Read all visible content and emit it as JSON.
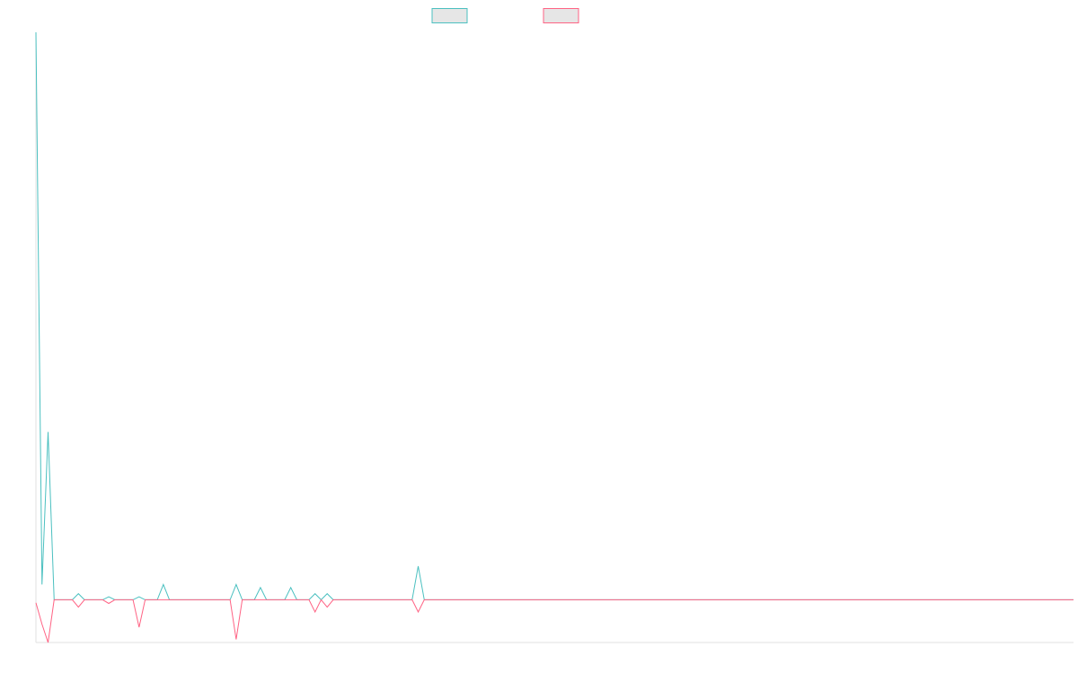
{
  "chart_data": {
    "type": "line",
    "title": "",
    "xlabel": "",
    "ylabel": "",
    "x": [
      0,
      1,
      2,
      3,
      4,
      5,
      6,
      7,
      8,
      9,
      10,
      11,
      12,
      13,
      14,
      15,
      16,
      17,
      18,
      19,
      20,
      21,
      22,
      23,
      24,
      25,
      26,
      27,
      28,
      29,
      30,
      31,
      32,
      33,
      34,
      35,
      36,
      37,
      38,
      39,
      40,
      41,
      42,
      43,
      44,
      45,
      46,
      47,
      48,
      49,
      50,
      51,
      52,
      53,
      54,
      55,
      56,
      57,
      58,
      59,
      60,
      61,
      62,
      63,
      64,
      65,
      66,
      67,
      68,
      69,
      70,
      71,
      72,
      73,
      74,
      75,
      76,
      77,
      78,
      79,
      80,
      81,
      82,
      83,
      84,
      85,
      86,
      87,
      88,
      89,
      90,
      91,
      92,
      93,
      94,
      95,
      96,
      97,
      98,
      99,
      100,
      101,
      102,
      103,
      104,
      105,
      106,
      107,
      108,
      109,
      110,
      111,
      112,
      113,
      114,
      115,
      116,
      117,
      118,
      119,
      120,
      121,
      122,
      123,
      124,
      125,
      126,
      127,
      128,
      129,
      130,
      131,
      132,
      133,
      134,
      135,
      136,
      137,
      138,
      139,
      140,
      141,
      142,
      143,
      144,
      145,
      146,
      147,
      148,
      149,
      150,
      151,
      152,
      153,
      154,
      155,
      156,
      157,
      158,
      159,
      160,
      161,
      162,
      163,
      164,
      165,
      166,
      167,
      168,
      169,
      170,
      171
    ],
    "ylim": [
      -7,
      93
    ],
    "grid": false,
    "legend_position": "top",
    "series": [
      {
        "color": "#4bc0c0",
        "values": [
          93,
          2.5,
          27.5,
          0,
          0,
          0,
          0,
          1,
          0,
          0,
          0,
          0,
          0.5,
          0,
          0,
          0,
          0,
          0.5,
          0,
          0,
          0,
          2.5,
          0,
          0,
          0,
          0,
          0,
          0,
          0,
          0,
          0,
          0,
          0,
          2.5,
          0,
          0,
          0,
          2,
          0,
          0,
          0,
          0,
          2,
          0,
          0,
          0,
          1,
          0,
          1,
          0,
          0,
          0,
          0,
          0,
          0,
          0,
          0,
          0,
          0,
          0,
          0,
          0,
          0,
          5.5,
          0,
          0,
          0,
          0,
          0,
          0,
          0,
          0,
          0,
          0,
          0,
          0,
          0,
          0,
          0,
          0,
          0,
          0,
          0,
          0,
          0,
          0,
          0,
          0,
          0,
          0,
          0,
          0,
          0,
          0,
          0,
          0,
          0,
          0,
          0,
          0,
          0,
          0,
          0,
          0,
          0,
          0,
          0,
          0,
          0,
          0,
          0,
          0,
          0,
          0,
          0,
          0,
          0,
          0,
          0,
          0,
          0,
          0,
          0,
          0,
          0,
          0,
          0,
          0,
          0,
          0,
          0,
          0,
          0,
          0,
          0,
          0,
          0,
          0,
          0,
          0,
          0,
          0,
          0,
          0,
          0,
          0,
          0,
          0,
          0,
          0,
          0,
          0,
          0,
          0,
          0,
          0,
          0,
          0,
          0,
          0,
          0,
          0,
          0,
          0,
          0,
          0,
          0,
          0,
          0,
          0,
          0,
          0
        ]
      },
      {
        "color": "#ff6384",
        "values": [
          -0.5,
          -4,
          -7,
          0,
          0,
          0,
          0,
          -1.2,
          0,
          0,
          0,
          0,
          -0.6,
          0,
          0,
          0,
          0,
          -4.5,
          0,
          0,
          0,
          0,
          0,
          0,
          0,
          0,
          0,
          0,
          0,
          0,
          0,
          0,
          0,
          -6.5,
          0,
          0,
          0,
          0,
          0,
          0,
          0,
          0,
          0,
          0,
          0,
          0,
          -2,
          0,
          -1.2,
          0,
          0,
          0,
          0,
          0,
          0,
          0,
          0,
          0,
          0,
          0,
          0,
          0,
          0,
          -2,
          0,
          0,
          0,
          0,
          0,
          0,
          0,
          0,
          0,
          0,
          0,
          0,
          0,
          0,
          0,
          0,
          0,
          0,
          0,
          0,
          0,
          0,
          0,
          0,
          0,
          0,
          0,
          0,
          0,
          0,
          0,
          0,
          0,
          0,
          0,
          0,
          0,
          0,
          0,
          0,
          0,
          0,
          0,
          0,
          0,
          0,
          0,
          0,
          0,
          0,
          0,
          0,
          0,
          0,
          0,
          0,
          0,
          0,
          0,
          0,
          0,
          0,
          0,
          0,
          0,
          0,
          0,
          0,
          0,
          0,
          0,
          0,
          0,
          0,
          0,
          0,
          0,
          0,
          0,
          0,
          0,
          0,
          0,
          0,
          0,
          0,
          0,
          0,
          0,
          0,
          0,
          0,
          0,
          0,
          0,
          0,
          0,
          0,
          0,
          0,
          0,
          0,
          0,
          0,
          0,
          0,
          0,
          0
        ]
      }
    ]
  }
}
